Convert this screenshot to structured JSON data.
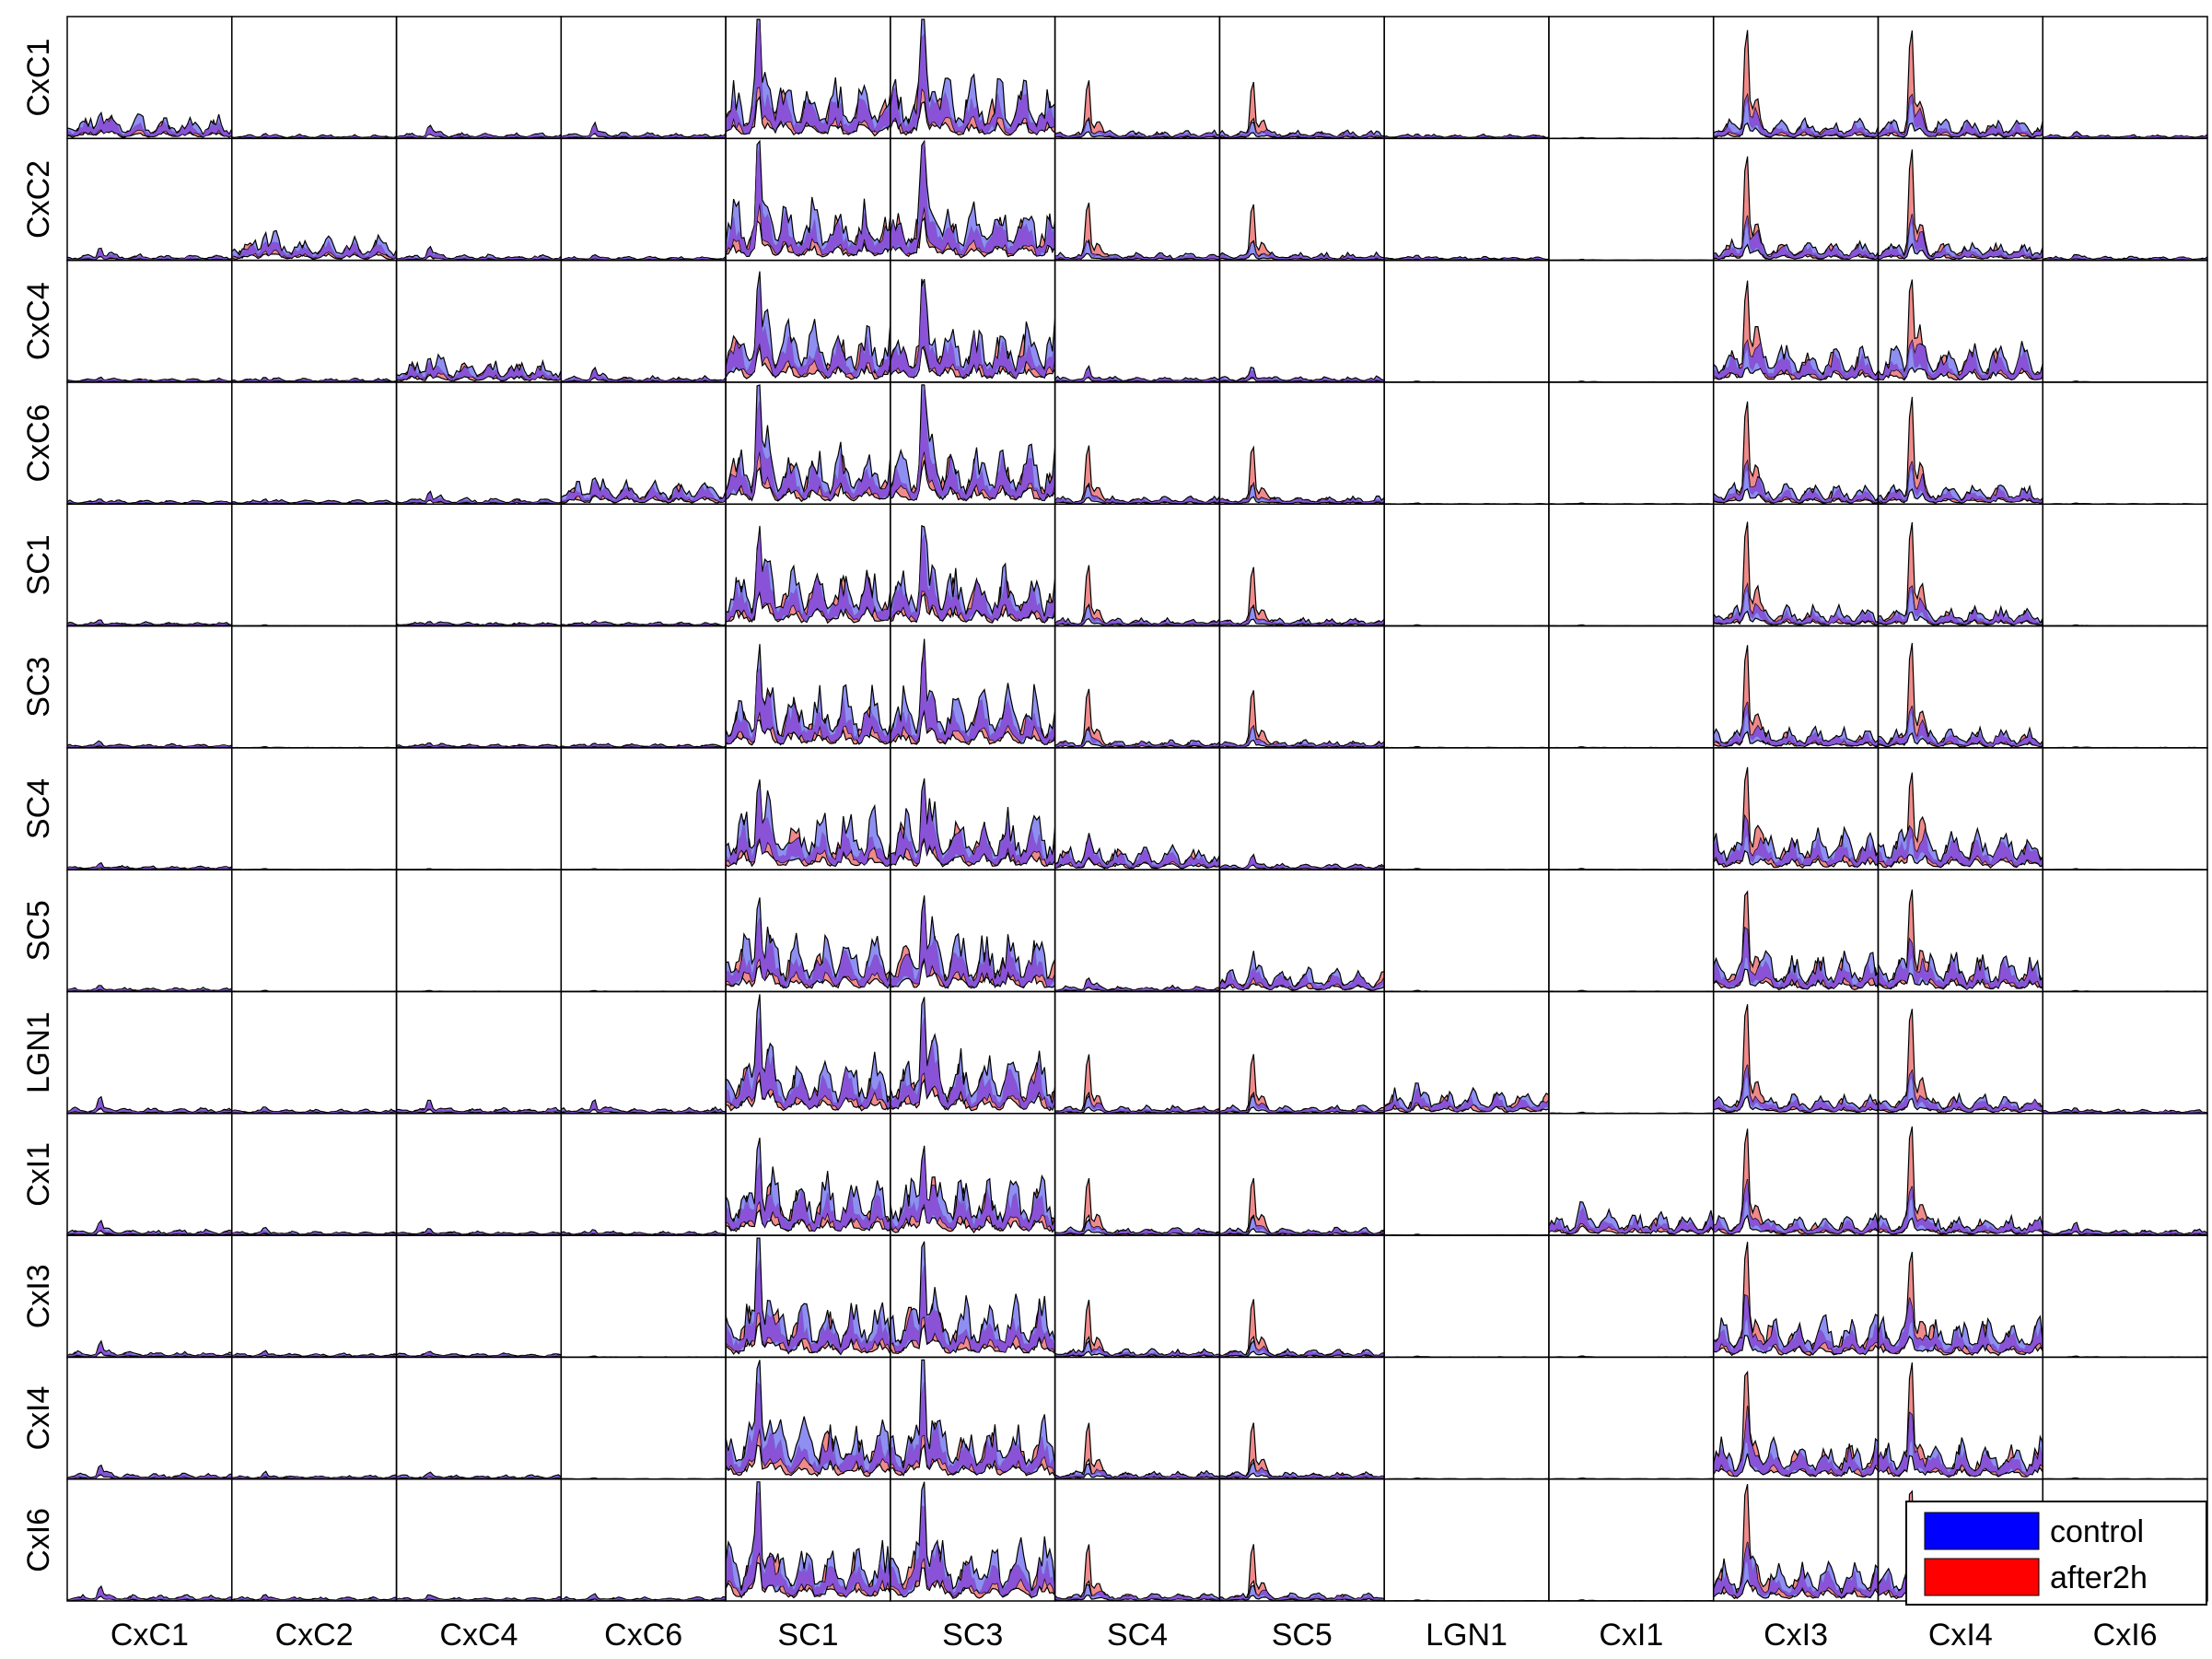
{
  "chart_data": {
    "type": "area",
    "grid": "13x13 small multiples",
    "rows": [
      "CxC1",
      "CxC2",
      "CxC4",
      "CxC6",
      "SC1",
      "SC3",
      "SC4",
      "SC5",
      "LGN1",
      "CxI1",
      "CxI3",
      "CxI4",
      "CxI6"
    ],
    "columns": [
      "CxC1",
      "CxC2",
      "CxC4",
      "CxC6",
      "SC1",
      "SC3",
      "SC4",
      "SC5",
      "LGN1",
      "CxI1",
      "CxI3",
      "CxI4",
      "CxI6"
    ],
    "series": [
      {
        "name": "control",
        "color": "#0000ff",
        "fill": "#7b7bf0"
      },
      {
        "name": "after2h",
        "color": "#ff0000",
        "fill": "#f08a8a"
      }
    ],
    "overlap_fill": "#8a4fd6",
    "legend_position": "bottom-right",
    "axis_ticks": false,
    "ylim": [
      0,
      1
    ],
    "peak_x_fraction": 0.2,
    "panel_profiles": {
      "flat": [
        0.01,
        0.005,
        0.002
      ],
      "tiny": [
        0.04,
        0.03,
        0.02
      ],
      "small": [
        0.12,
        0.1,
        0.03
      ],
      "medium_red": [
        0.15,
        0.6,
        0.04
      ],
      "big_red": [
        0.4,
        1.1,
        0.1
      ],
      "diag": [
        0.2,
        0.15,
        0.12
      ],
      "sc_blue": [
        1.15,
        0.9,
        0.3
      ],
      "sc_mix": [
        0.8,
        0.7,
        0.3
      ],
      "cxi": [
        0.35,
        1.0,
        0.2
      ]
    },
    "panels": [
      [
        "diag",
        "tiny",
        "small",
        "small",
        "sc_blue",
        "sc_blue",
        "medium_red",
        "medium_red",
        "tiny",
        "flat",
        "big_red",
        "big_red",
        "tiny"
      ],
      [
        "small",
        "diag",
        "small",
        "tiny",
        "sc_blue",
        "sc_blue",
        "medium_red",
        "medium_red",
        "tiny",
        "flat",
        "big_red",
        "big_red",
        "tiny"
      ],
      [
        "tiny",
        "tiny",
        "diag",
        "small",
        "sc_mix",
        "sc_mix",
        "small",
        "small",
        "flat",
        "flat",
        "cxi",
        "cxi",
        "flat"
      ],
      [
        "tiny",
        "tiny",
        "small",
        "diag",
        "sc_blue",
        "sc_blue",
        "medium_red",
        "medium_red",
        "flat",
        "flat",
        "big_red",
        "big_red",
        "flat"
      ],
      [
        "tiny",
        "flat",
        "tiny",
        "tiny",
        "sc_mix",
        "sc_mix",
        "medium_red",
        "medium_red",
        "flat",
        "flat",
        "big_red",
        "big_red",
        "flat"
      ],
      [
        "tiny",
        "flat",
        "tiny",
        "tiny",
        "sc_mix",
        "sc_mix",
        "medium_red",
        "medium_red",
        "flat",
        "flat",
        "big_red",
        "big_red",
        "flat"
      ],
      [
        "tiny",
        "flat",
        "flat",
        "flat",
        "sc_mix",
        "sc_mix",
        "diag",
        "small",
        "flat",
        "flat",
        "cxi",
        "cxi",
        "flat"
      ],
      [
        "tiny",
        "flat",
        "flat",
        "flat",
        "sc_mix",
        "sc_mix",
        "small",
        "diag",
        "flat",
        "flat",
        "cxi",
        "cxi",
        "flat"
      ],
      [
        "small",
        "tiny",
        "small",
        "small",
        "sc_blue",
        "sc_blue",
        "medium_red",
        "medium_red",
        "diag",
        "flat",
        "big_red",
        "big_red",
        "tiny"
      ],
      [
        "small",
        "tiny",
        "tiny",
        "tiny",
        "sc_mix",
        "sc_mix",
        "medium_red",
        "medium_red",
        "flat",
        "diag",
        "big_red",
        "big_red",
        "small"
      ],
      [
        "small",
        "tiny",
        "tiny",
        "flat",
        "sc_blue",
        "sc_blue",
        "medium_red",
        "medium_red",
        "flat",
        "flat",
        "cxi",
        "cxi",
        "flat"
      ],
      [
        "small",
        "tiny",
        "tiny",
        "flat",
        "sc_blue",
        "sc_blue",
        "medium_red",
        "medium_red",
        "flat",
        "flat",
        "cxi",
        "cxi",
        "flat"
      ],
      [
        "small",
        "tiny",
        "tiny",
        "tiny",
        "sc_blue",
        "sc_blue",
        "medium_red",
        "medium_red",
        "flat",
        "flat",
        "cxi",
        "cxi",
        "diag"
      ]
    ]
  }
}
